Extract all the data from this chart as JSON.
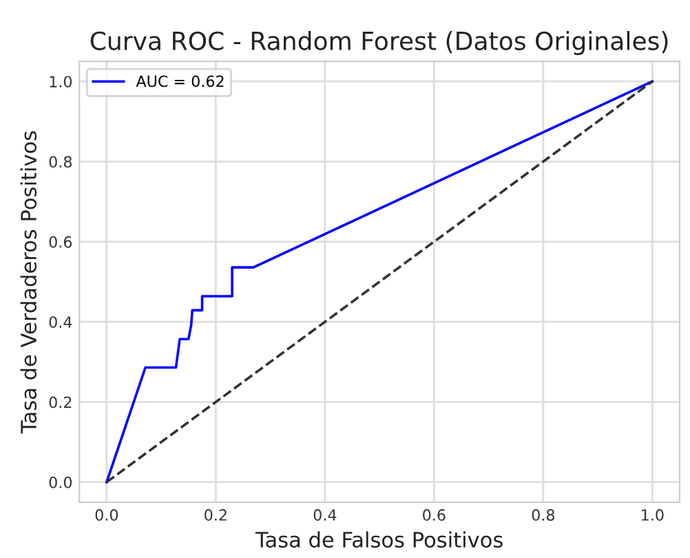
{
  "chart_data": {
    "type": "line",
    "title": "Curva ROC - Random Forest (Datos Originales)",
    "xlabel": "Tasa de Falsos Positivos",
    "ylabel": "Tasa de Verdaderos Positivos",
    "series": [
      {
        "name": "AUC = 0.62",
        "color": "#0000ff",
        "x": [
          0,
          0.071,
          0.127,
          0.134,
          0.15,
          0.155,
          0.157,
          0.175,
          0.175,
          0.23,
          0.23,
          0.269,
          1
        ],
        "values": [
          0,
          0.286,
          0.286,
          0.357,
          0.357,
          0.393,
          0.429,
          0.429,
          0.464,
          0.464,
          0.536,
          0.536,
          1
        ]
      },
      {
        "color": "#333333",
        "line_style": "dashed",
        "x": [
          0,
          1
        ],
        "values": [
          0,
          1
        ]
      }
    ],
    "xlim": [
      -0.05,
      1.05
    ],
    "ylim": [
      -0.05,
      1.05
    ],
    "xticks": [
      {
        "value": 0,
        "label": "0.0"
      },
      0.2,
      0.4,
      0.6,
      0.8,
      {
        "value": 1,
        "label": "1.0"
      }
    ],
    "yticks": [
      {
        "value": 0,
        "label": "0.0"
      },
      0.2,
      0.4,
      0.6,
      0.8,
      {
        "value": 1,
        "label": "1.0"
      }
    ],
    "grid": true,
    "legend": "top left"
  }
}
